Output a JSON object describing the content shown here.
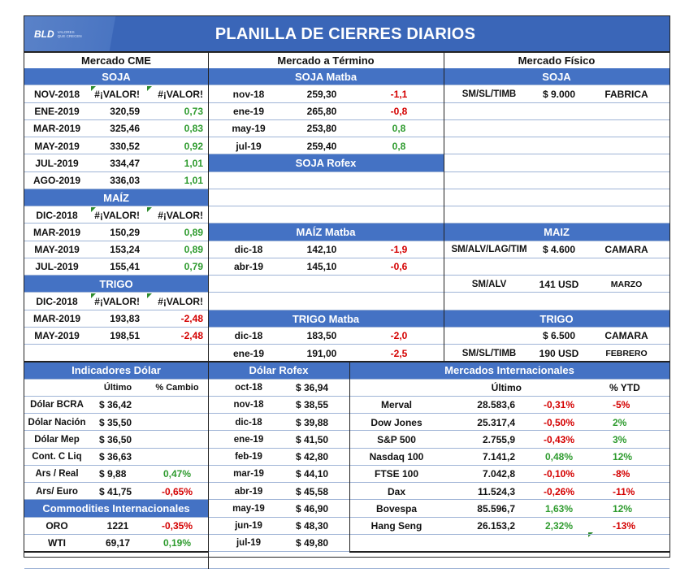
{
  "title": "PLANILLA DE CIERRES DIARIOS",
  "logo": {
    "mark": "BLD",
    "tagline": "VALORES QUE CRECEN"
  },
  "headers": {
    "cme": "Mercado CME",
    "termino": "Mercado a Término",
    "fisico": "Mercado Físico"
  },
  "cme": {
    "soja": {
      "title": "SOJA",
      "rows": [
        [
          "NOV-2018",
          "#¡VALOR!",
          "#¡VALOR!"
        ],
        [
          "ENE-2019",
          "320,59",
          "0,73"
        ],
        [
          "MAR-2019",
          "325,46",
          "0,83"
        ],
        [
          "MAY-2019",
          "330,52",
          "0,92"
        ],
        [
          "JUL-2019",
          "334,47",
          "1,01"
        ],
        [
          "AGO-2019",
          "336,03",
          "1,01"
        ]
      ]
    },
    "maiz": {
      "title": "MAÍZ",
      "rows": [
        [
          "DIC-2018",
          "#¡VALOR!",
          "#¡VALOR!"
        ],
        [
          "MAR-2019",
          "150,29",
          "0,89"
        ],
        [
          "MAY-2019",
          "153,24",
          "0,89"
        ],
        [
          "JUL-2019",
          "155,41",
          "0,79"
        ]
      ]
    },
    "trigo": {
      "title": "TRIGO",
      "rows": [
        [
          "DIC-2018",
          "#¡VALOR!",
          "#¡VALOR!"
        ],
        [
          "MAR-2019",
          "193,83",
          "-2,48"
        ],
        [
          "MAY-2019",
          "198,51",
          "-2,48"
        ]
      ]
    }
  },
  "termino": {
    "soja_matba": {
      "title": "SOJA Matba",
      "rows": [
        [
          "nov-18",
          "259,30",
          "-1,1"
        ],
        [
          "ene-19",
          "265,80",
          "-0,8"
        ],
        [
          "may-19",
          "253,80",
          "0,8"
        ],
        [
          "jul-19",
          "259,40",
          "0,8"
        ]
      ]
    },
    "soja_rofex": {
      "title": "SOJA Rofex"
    },
    "maiz_matba": {
      "title": "MAÍZ Matba",
      "rows": [
        [
          "dic-18",
          "142,10",
          "-1,9"
        ],
        [
          "abr-19",
          "145,10",
          "-0,6"
        ]
      ]
    },
    "trigo_matba": {
      "title": "TRIGO Matba",
      "rows": [
        [
          "dic-18",
          "183,50",
          "-2,0"
        ],
        [
          "ene-19",
          "191,00",
          "-2,5"
        ]
      ]
    }
  },
  "fisico": {
    "soja": {
      "title": "SOJA",
      "rows": [
        [
          "SM/SL/TIMB",
          "$ 9.000",
          "FABRICA"
        ]
      ]
    },
    "maiz": {
      "title": "MAIZ",
      "rows": [
        [
          "SM/ALV/LAG/TIM",
          "$ 4.600",
          "CAMARA"
        ],
        [
          "SM/ALV",
          "141 USD",
          "MARZO"
        ]
      ]
    },
    "trigo": {
      "title": "TRIGO",
      "rows": [
        [
          "",
          "$ 6.500",
          "CAMARA"
        ],
        [
          "SM/SL/TIMB",
          "190 USD",
          "FEBRERO"
        ]
      ]
    }
  },
  "dolar": {
    "title": "Indicadores Dólar",
    "col_last": "Último",
    "col_change": "% Cambio",
    "rows": [
      [
        "Dólar BCRA",
        "$ 36,42",
        ""
      ],
      [
        "Dólar Nación",
        "$ 35,50",
        ""
      ],
      [
        "Dólar Mep",
        "$ 36,50",
        ""
      ],
      [
        "Cont. C Liq",
        "$ 36,63",
        ""
      ],
      [
        "Ars / Real",
        "$ 9,88",
        "0,47%"
      ],
      [
        "Ars/ Euro",
        "$ 41,75",
        "-0,65%"
      ]
    ]
  },
  "commodities": {
    "title": "Commodities Internacionales",
    "rows": [
      [
        "ORO",
        "1221",
        "-0,35%"
      ],
      [
        "WTI",
        "69,17",
        "0,19%"
      ]
    ]
  },
  "dolar_rofex": {
    "title": "Dólar Rofex",
    "rows": [
      [
        "oct-18",
        "$ 36,94"
      ],
      [
        "nov-18",
        "$ 38,55"
      ],
      [
        "dic-18",
        "$ 39,88"
      ],
      [
        "ene-19",
        "$ 41,50"
      ],
      [
        "feb-19",
        "$ 42,80"
      ],
      [
        "mar-19",
        "$ 44,10"
      ],
      [
        "abr-19",
        "$ 45,58"
      ],
      [
        "may-19",
        "$ 46,90"
      ],
      [
        "jun-19",
        "$ 48,30"
      ],
      [
        "jul-19",
        "$ 49,80"
      ]
    ]
  },
  "intl": {
    "title": "Mercados Internacionales",
    "col_last": "Último",
    "col_ytd": "% YTD",
    "rows": [
      [
        "Merval",
        "28.583,6",
        "-0,31%",
        "-5%"
      ],
      [
        "Dow Jones",
        "25.317,4",
        "-0,50%",
        "2%"
      ],
      [
        "S&P 500",
        "2.755,9",
        "-0,43%",
        "3%"
      ],
      [
        "Nasdaq 100",
        "7.141,2",
        "0,48%",
        "12%"
      ],
      [
        "FTSE 100",
        "7.042,8",
        "-0,10%",
        "-8%"
      ],
      [
        "Dax",
        "11.524,3",
        "-0,26%",
        "-11%"
      ],
      [
        "Bovespa",
        "85.596,7",
        "1,63%",
        "12%"
      ],
      [
        "Hang Seng",
        "26.153,2",
        "2,32%",
        "-13%"
      ]
    ]
  },
  "colors": {
    "header_blue": "#4472c4",
    "positive": "#2e9b2e",
    "negative": "#d40000"
  }
}
